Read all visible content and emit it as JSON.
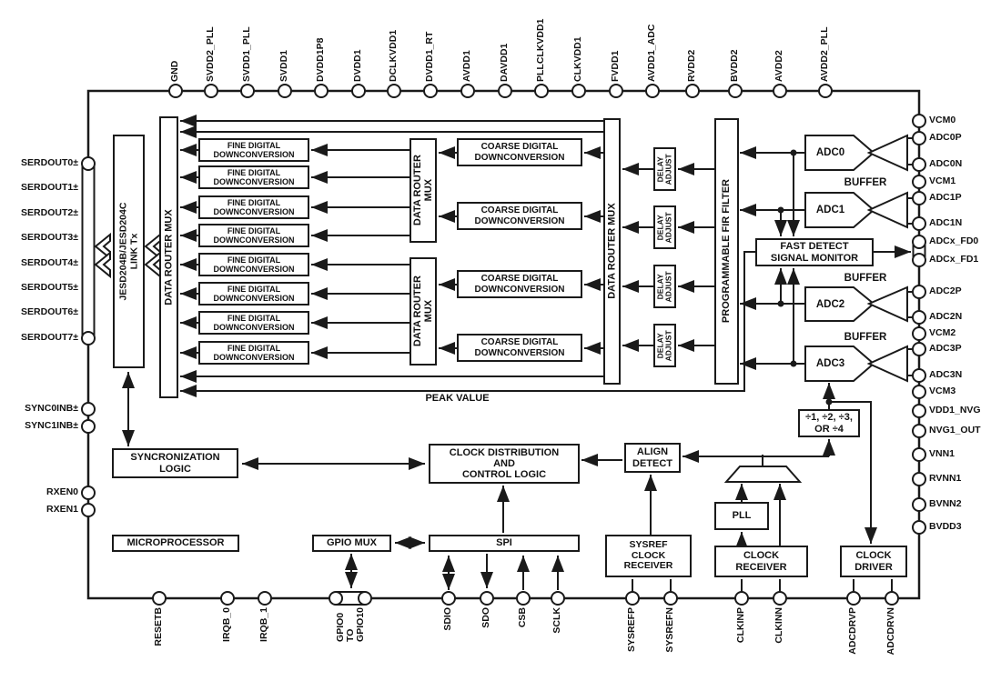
{
  "diagram": {
    "title": "quad ADC functional block diagram",
    "colors": {
      "line": "#1a1a1a",
      "background": "#ffffff"
    },
    "blocks": {
      "jesd_tx": "JESD204B/JESD204C\nLINK Tx",
      "data_router_mux": "DATA ROUTER MUX",
      "data_router_mux_small": "DATA ROUTER\nMUX",
      "fine_ddc": "FINE DIGITAL\nDOWNCONVERSION",
      "coarse_ddc": "COARSE DIGITAL\nDOWNCONVERSION",
      "delay_adjust": "DELAY\nADJUST",
      "fir": "PROGRAMMABLE FIR FILTER",
      "fast_detect": "FAST DETECT\nSIGNAL MONITOR",
      "adc_labels": [
        "ADC0",
        "ADC1",
        "ADC2",
        "ADC3"
      ],
      "buffer_label": "BUFFER",
      "divider": "÷1, ÷2, ÷3,\nOR ÷4",
      "pll": "PLL",
      "clock_receiver": "CLOCK\nRECEIVER",
      "clock_driver": "CLOCK\nDRIVER",
      "sysref_receiver": "SYSREF\nCLOCK\nRECEIVER",
      "align_detect": "ALIGN\nDETECT",
      "clock_distribution": "CLOCK DISTRIBUTION\nAND\nCONTROL LOGIC",
      "spi": "SPI",
      "gpio_mux": "GPIO MUX",
      "sync_logic": "SYNCRONIZATION\nLOGIC",
      "microprocessor": "MICROPROCESSOR",
      "peak_value": "PEAK VALUE"
    },
    "pins": {
      "top": [
        "GND",
        "SVDD2_PLL",
        "SVDD1_PLL",
        "SVDD1",
        "DVDD1P8",
        "DVDD1",
        "DCLKVDD1",
        "DVDD1_RT",
        "AVDD1",
        "DAVDD1",
        "PLLCLKVDD1",
        "CLKVDD1",
        "FVDD1",
        "AVDD1_ADC",
        "RVDD2",
        "BVDD2",
        "AVDD2",
        "AVDD2_PLL"
      ],
      "bottom": [
        "RESETB",
        "IRQB_0",
        "IRQB_1",
        "GPIO0\nTO\nGPIO10",
        "SDIO",
        "SDO",
        "CSB",
        "SCLK",
        "SYSREFP",
        "SYSREFN",
        "CLKINP",
        "CLKINN",
        "ADCDRVP",
        "ADCDRVN"
      ],
      "left": [
        "SERDOUT0±",
        "SERDOUT1±",
        "SERDOUT2±",
        "SERDOUT3±",
        "SERDOUT4±",
        "SERDOUT5±",
        "SERDOUT6±",
        "SERDOUT7±",
        "SYNC0INB±",
        "SYNC1INB±",
        "RXEN0",
        "RXEN1"
      ],
      "right": [
        "VCM0",
        "ADC0P",
        "ADC0N",
        "VCM1",
        "ADC1P",
        "ADC1N",
        "ADCx_FD0",
        "ADCx_FD1",
        "ADC2P",
        "ADC2N",
        "VCM2",
        "ADC3P",
        "ADC3N",
        "VCM3",
        "VDD1_NVG",
        "NVG1_OUT",
        "VNN1",
        "RVNN1",
        "BVNN2",
        "BVDD3"
      ]
    }
  }
}
